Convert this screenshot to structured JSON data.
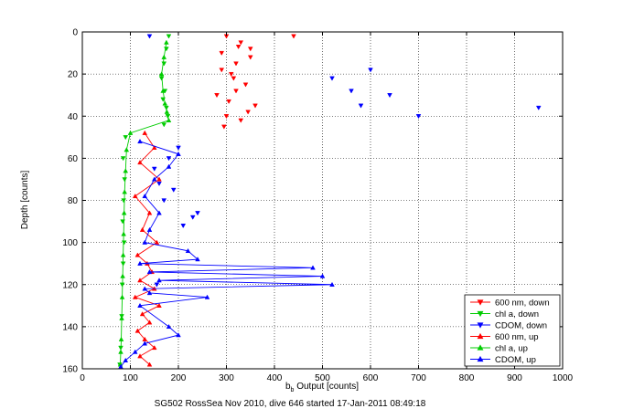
{
  "chart_data": {
    "type": "scatter",
    "title": "",
    "xlabel_main": "b",
    "xlabel_sub": "b",
    "xlabel_rest": " Output [counts]",
    "ylabel": "Depth [counts]",
    "caption": "SG502 RossSea Nov 2010, dive 646 started 17-Jan-2011 08:49:18",
    "xlim": [
      0,
      1000
    ],
    "ylim": [
      0,
      160
    ],
    "y_reversed": true,
    "grid": true,
    "grid_style": "dotted",
    "xticks": [
      0,
      100,
      200,
      300,
      400,
      500,
      600,
      700,
      800,
      900,
      1000
    ],
    "yticks": [
      0,
      20,
      40,
      60,
      80,
      100,
      120,
      140,
      160
    ],
    "xtick_labels": [
      "0",
      "100",
      "200",
      "300",
      "400",
      "500",
      "600",
      "700",
      "800",
      "900",
      "1000"
    ],
    "ytick_labels": [
      "0",
      "20",
      "40",
      "60",
      "80",
      "100",
      "120",
      "140",
      "160"
    ],
    "legend_position": "bottom-right",
    "legend": [
      {
        "label": "600 nm, down",
        "color": "#ff0000",
        "marker": "triangle-down"
      },
      {
        "label": "chl a, down",
        "color": "#00cc00",
        "marker": "triangle-down"
      },
      {
        "label": "CDOM, down",
        "color": "#0000ff",
        "marker": "triangle-down"
      },
      {
        "label": "600 nm, up",
        "color": "#ff0000",
        "marker": "triangle-up"
      },
      {
        "label": "chl a, up",
        "color": "#00cc00",
        "marker": "triangle-up"
      },
      {
        "label": "CDOM, up",
        "color": "#0000ff",
        "marker": "triangle-up"
      }
    ],
    "series": [
      {
        "name": "600 nm, down",
        "color": "#ff0000",
        "marker": "triangle-down",
        "line": false,
        "x": [
          300,
          330,
          350,
          290,
          320,
          310,
          340,
          280,
          360,
          300,
          330,
          290,
          350,
          320,
          305,
          345,
          315,
          295,
          325,
          440
        ],
        "y": [
          2,
          5,
          8,
          10,
          15,
          20,
          25,
          30,
          35,
          40,
          42,
          18,
          12,
          28,
          33,
          38,
          22,
          45,
          7,
          2
        ]
      },
      {
        "name": "chl a, down",
        "color": "#00cc00",
        "marker": "triangle-down",
        "line": false,
        "x": [
          180,
          175,
          170,
          165,
          172,
          168,
          175,
          178,
          170,
          90,
          85,
          88,
          86,
          84,
          87,
          85,
          83,
          82,
          80,
          78
        ],
        "y": [
          2,
          8,
          15,
          22,
          28,
          32,
          36,
          40,
          44,
          50,
          60,
          70,
          80,
          90,
          100,
          110,
          120,
          135,
          150,
          158
        ]
      },
      {
        "name": "CDOM, down",
        "color": "#0000ff",
        "marker": "triangle-down",
        "line": false,
        "x": [
          140,
          600,
          520,
          560,
          640,
          580,
          700,
          950,
          200,
          180,
          150,
          160,
          170,
          230,
          210,
          190,
          240,
          155
        ],
        "y": [
          2,
          18,
          22,
          28,
          30,
          35,
          40,
          36,
          55,
          60,
          65,
          72,
          80,
          88,
          92,
          75,
          86,
          120
        ]
      },
      {
        "name": "600 nm, up",
        "color": "#ff0000",
        "marker": "triangle-up",
        "line": true,
        "x": [
          130,
          150,
          120,
          160,
          110,
          140,
          125,
          155,
          115,
          135,
          145,
          120,
          150,
          110,
          160,
          125,
          140,
          115,
          130,
          150,
          120,
          140
        ],
        "y": [
          48,
          55,
          62,
          70,
          78,
          86,
          94,
          100,
          106,
          110,
          114,
          118,
          122,
          126,
          130,
          134,
          138,
          142,
          146,
          150,
          154,
          158
        ]
      },
      {
        "name": "chl a, up",
        "color": "#00cc00",
        "marker": "triangle-up",
        "line": true,
        "x": [
          175,
          170,
          165,
          168,
          172,
          176,
          180,
          100,
          92,
          90,
          88,
          87,
          86,
          85,
          84,
          83,
          82,
          81,
          80,
          79
        ],
        "y": [
          5,
          12,
          20,
          28,
          34,
          38,
          42,
          48,
          56,
          66,
          76,
          86,
          96,
          106,
          116,
          126,
          136,
          146,
          152,
          158
        ]
      },
      {
        "name": "CDOM, up",
        "color": "#0000ff",
        "marker": "triangle-up",
        "line": true,
        "x": [
          120,
          200,
          180,
          150,
          130,
          160,
          140,
          130,
          220,
          240,
          120,
          480,
          140,
          500,
          160,
          520,
          130,
          140,
          260,
          120,
          180,
          200,
          130,
          110,
          90,
          80
        ],
        "y": [
          52,
          58,
          64,
          70,
          78,
          86,
          94,
          100,
          104,
          108,
          110,
          112,
          114,
          116,
          118,
          120,
          122,
          124,
          126,
          130,
          140,
          144,
          148,
          152,
          156,
          159
        ]
      }
    ]
  }
}
